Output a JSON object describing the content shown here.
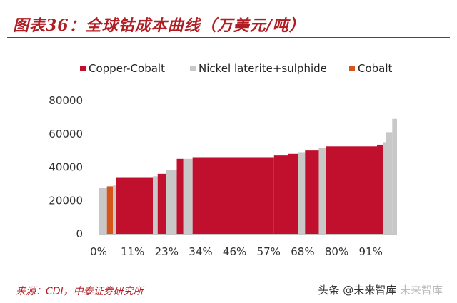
{
  "header": {
    "title": "图表36：全球钴成本曲线（万美元/吨）"
  },
  "footer": {
    "source": "来源：CDI，中泰证券研究所",
    "watermark_prefix": "头条",
    "watermark_brand": "@未来智库",
    "watermark_faint": "未来智库"
  },
  "colors": {
    "Copper-Cobalt": "#c0102e",
    "Nickel laterite+sulphide": "#c8c8c8",
    "Cobalt": "#d5561a",
    "title": "#b01e24"
  },
  "chart_data": {
    "type": "bar",
    "subtype": "cost-curve",
    "legend": {
      "position": "top",
      "entries": [
        "Copper-Cobalt",
        "Nickel laterite+sulphide",
        "Cobalt"
      ]
    },
    "ylim": [
      0,
      80000
    ],
    "yticks": [
      0,
      20000,
      40000,
      60000,
      80000
    ],
    "ytick_labels": [
      "0",
      "20000",
      "40000",
      "60000",
      "80000"
    ],
    "xlim": [
      0,
      100
    ],
    "xtick_values": [
      0,
      11.4,
      22.8,
      34.2,
      45.6,
      57,
      68.4,
      79.8,
      91.2
    ],
    "xtick_labels": [
      "0%",
      "11%",
      "23%",
      "34%",
      "46%",
      "57%",
      "68%",
      "80%",
      "91%"
    ],
    "grid": false,
    "segments": [
      {
        "x0": 0.0,
        "x1": 2.8,
        "value": 27500,
        "type": "Nickel laterite+sulphide"
      },
      {
        "x0": 2.8,
        "x1": 4.8,
        "value": 28500,
        "type": "Cobalt"
      },
      {
        "x0": 4.8,
        "x1": 5.8,
        "value": 29000,
        "type": "Nickel laterite+sulphide"
      },
      {
        "x0": 5.8,
        "x1": 18.2,
        "value": 34000,
        "type": "Copper-Cobalt"
      },
      {
        "x0": 18.2,
        "x1": 19.8,
        "value": 34500,
        "type": "Nickel laterite+sulphide"
      },
      {
        "x0": 19.8,
        "x1": 22.5,
        "value": 36000,
        "type": "Copper-Cobalt"
      },
      {
        "x0": 22.5,
        "x1": 26.2,
        "value": 38500,
        "type": "Nickel laterite+sulphide"
      },
      {
        "x0": 26.2,
        "x1": 28.4,
        "value": 45000,
        "type": "Copper-Cobalt"
      },
      {
        "x0": 28.4,
        "x1": 31.5,
        "value": 45000,
        "type": "Nickel laterite+sulphide"
      },
      {
        "x0": 31.5,
        "x1": 58.8,
        "value": 46000,
        "type": "Copper-Cobalt"
      },
      {
        "x0": 58.8,
        "x1": 63.6,
        "value": 47000,
        "type": "Copper-Cobalt"
      },
      {
        "x0": 63.6,
        "x1": 66.9,
        "value": 48000,
        "type": "Copper-Cobalt"
      },
      {
        "x0": 66.9,
        "x1": 69.2,
        "value": 49000,
        "type": "Nickel laterite+sulphide"
      },
      {
        "x0": 69.2,
        "x1": 73.8,
        "value": 50000,
        "type": "Copper-Cobalt"
      },
      {
        "x0": 73.8,
        "x1": 76.2,
        "value": 51500,
        "type": "Nickel laterite+sulphide"
      },
      {
        "x0": 76.2,
        "x1": 93.3,
        "value": 52500,
        "type": "Copper-Cobalt"
      },
      {
        "x0": 93.3,
        "x1": 95.3,
        "value": 53500,
        "type": "Copper-Cobalt"
      },
      {
        "x0": 95.3,
        "x1": 96.2,
        "value": 55000,
        "type": "Nickel laterite+sulphide"
      },
      {
        "x0": 96.2,
        "x1": 98.4,
        "value": 61000,
        "type": "Nickel laterite+sulphide"
      },
      {
        "x0": 98.4,
        "x1": 100.0,
        "value": 69000,
        "type": "Nickel laterite+sulphide"
      }
    ]
  }
}
